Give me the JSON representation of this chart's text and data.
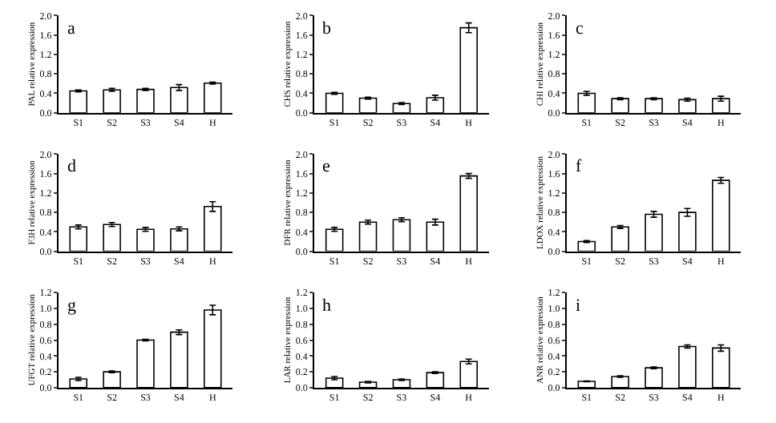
{
  "chart_data": [
    {
      "type": "bar",
      "title": "a",
      "ylabel": "PAL relative expression",
      "categories": [
        "S1",
        "S2",
        "S3",
        "S4",
        "H"
      ],
      "values": [
        0.45,
        0.47,
        0.48,
        0.52,
        0.61
      ],
      "errors": [
        0.02,
        0.03,
        0.02,
        0.06,
        0.02
      ],
      "color": "#ffffff",
      "ylim": [
        0,
        2
      ],
      "yticks": [
        {
          "value": 0,
          "label": "0.0"
        },
        0.4,
        0.8,
        1.2,
        1.6,
        {
          "value": 2,
          "label": "2.0"
        }
      ]
    },
    {
      "type": "bar",
      "title": "b",
      "ylabel": "CHS relative expression",
      "categories": [
        "S1",
        "S2",
        "S3",
        "S4",
        "H"
      ],
      "values": [
        0.4,
        0.3,
        0.19,
        0.31,
        1.75
      ],
      "errors": [
        0.02,
        0.02,
        0.02,
        0.05,
        0.1
      ],
      "color": "#ffffff",
      "ylim": [
        0,
        2
      ],
      "yticks": [
        {
          "value": 0,
          "label": "0.0"
        },
        0.4,
        0.8,
        1.2,
        1.6,
        {
          "value": 2,
          "label": "2.0"
        }
      ]
    },
    {
      "type": "bar",
      "title": "c",
      "ylabel": "CHI relative expression",
      "categories": [
        "S1",
        "S2",
        "S3",
        "S4",
        "H"
      ],
      "values": [
        0.4,
        0.29,
        0.29,
        0.27,
        0.29
      ],
      "errors": [
        0.04,
        0.02,
        0.02,
        0.03,
        0.05
      ],
      "color": "#ffffff",
      "ylim": [
        0,
        2
      ],
      "yticks": [
        {
          "value": 0,
          "label": "0.0"
        },
        0.4,
        0.8,
        1.2,
        1.6,
        {
          "value": 2,
          "label": "2.0"
        }
      ]
    },
    {
      "type": "bar",
      "title": "d",
      "ylabel": "F3H relative expression",
      "categories": [
        "S1",
        "S2",
        "S3",
        "S4",
        "H"
      ],
      "values": [
        0.5,
        0.55,
        0.45,
        0.46,
        0.92
      ],
      "errors": [
        0.04,
        0.04,
        0.04,
        0.04,
        0.1
      ],
      "color": "#ffffff",
      "ylim": [
        0,
        2
      ],
      "yticks": [
        {
          "value": 0,
          "label": "0.0"
        },
        0.4,
        0.8,
        1.2,
        1.6,
        {
          "value": 2,
          "label": "2.0"
        }
      ]
    },
    {
      "type": "bar",
      "title": "e",
      "ylabel": "DFR relative expression",
      "categories": [
        "S1",
        "S2",
        "S3",
        "S4",
        "H"
      ],
      "values": [
        0.45,
        0.6,
        0.65,
        0.6,
        1.55
      ],
      "errors": [
        0.04,
        0.04,
        0.04,
        0.06,
        0.05
      ],
      "color": "#ffffff",
      "ylim": [
        0,
        2
      ],
      "yticks": [
        {
          "value": 0,
          "label": "0.0"
        },
        0.4,
        0.8,
        1.2,
        1.6,
        {
          "value": 2,
          "label": "2.0"
        }
      ]
    },
    {
      "type": "bar",
      "title": "f",
      "ylabel": "LDOX relative expression",
      "categories": [
        "S1",
        "S2",
        "S3",
        "S4",
        "H"
      ],
      "values": [
        0.2,
        0.5,
        0.76,
        0.8,
        1.46
      ],
      "errors": [
        0.02,
        0.03,
        0.06,
        0.08,
        0.06
      ],
      "color": "#ffffff",
      "ylim": [
        0,
        2
      ],
      "yticks": [
        {
          "value": 0,
          "label": "0.0"
        },
        0.4,
        0.8,
        1.2,
        1.6,
        {
          "value": 2,
          "label": "2.0"
        }
      ]
    },
    {
      "type": "bar",
      "title": "g",
      "ylabel": "UFGT relative expression",
      "categories": [
        "S1",
        "S2",
        "S3",
        "S4",
        "H"
      ],
      "values": [
        0.11,
        0.2,
        0.6,
        0.7,
        0.98
      ],
      "errors": [
        0.02,
        0.01,
        0.01,
        0.03,
        0.06
      ],
      "color": "#ffffff",
      "ylim": [
        0,
        1.2
      ],
      "yticks": [
        {
          "value": 0,
          "label": "0.0"
        },
        0.2,
        0.4,
        0.6,
        0.8,
        {
          "value": 1,
          "label": "1.0"
        },
        1.2
      ]
    },
    {
      "type": "bar",
      "title": "h",
      "ylabel": "LAR relative expression",
      "categories": [
        "S1",
        "S2",
        "S3",
        "S4",
        "H"
      ],
      "values": [
        0.12,
        0.07,
        0.1,
        0.19,
        0.33
      ],
      "errors": [
        0.02,
        0.01,
        0.01,
        0.01,
        0.03
      ],
      "color": "#ffffff",
      "ylim": [
        0,
        1.2
      ],
      "yticks": [
        {
          "value": 0,
          "label": "0.0"
        },
        0.2,
        0.4,
        0.6,
        0.8,
        {
          "value": 1,
          "label": "1.0"
        },
        1.2
      ]
    },
    {
      "type": "bar",
      "title": "i",
      "ylabel": "ANR relative expression",
      "categories": [
        "S1",
        "S2",
        "S3",
        "S4",
        "H"
      ],
      "values": [
        0.08,
        0.14,
        0.25,
        0.52,
        0.5
      ],
      "errors": [
        0.005,
        0.01,
        0.01,
        0.02,
        0.04
      ],
      "color": "#ffffff",
      "ylim": [
        0,
        1.2
      ],
      "yticks": [
        {
          "value": 0,
          "label": "0.0"
        },
        0.2,
        0.4,
        0.6,
        0.8,
        {
          "value": 1,
          "label": "1.0"
        },
        1.2
      ]
    }
  ]
}
